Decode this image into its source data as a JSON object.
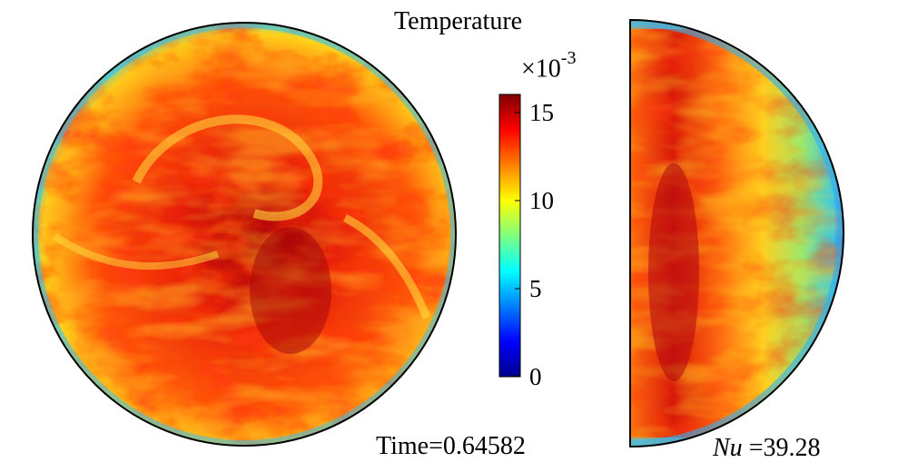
{
  "colorbar": {
    "title": "Temperature",
    "multiplier_base": "×10",
    "multiplier_exponent": "-3",
    "ticks": [
      "15",
      "10",
      "5",
      "0"
    ],
    "range": [
      0,
      16
    ],
    "colormap": [
      "#00008f",
      "#0000ff",
      "#00ffff",
      "#ffff00",
      "#ff0000",
      "#800000"
    ]
  },
  "annotations": {
    "time": "Time=0.64582",
    "nu_symbol": "Nu",
    "nu_value": " =39.28"
  },
  "panels": [
    {
      "name": "horizontal-cross-section",
      "shape": "circle"
    },
    {
      "name": "vertical-cross-section",
      "shape": "half-circle"
    }
  ]
}
